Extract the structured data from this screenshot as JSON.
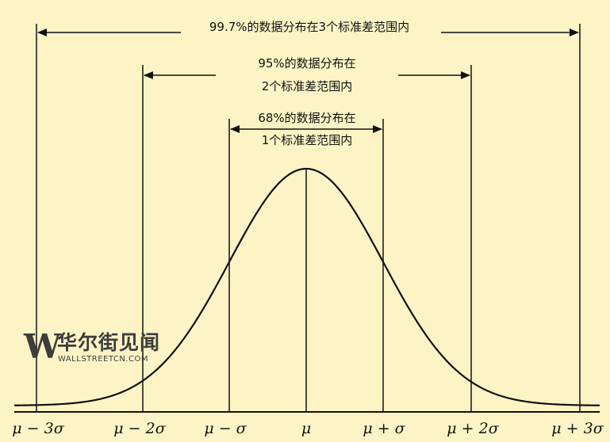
{
  "annotations": {
    "range_3sigma": "99.7%的数据分布在3个标准差范围内",
    "range_2sigma_line1": "95%的数据分布在",
    "range_2sigma_line2": "2个标准差范围内",
    "range_1sigma_line1": "68%的数据分布在",
    "range_1sigma_line2": "1个标准差范围内"
  },
  "axis": {
    "ticks": [
      {
        "label": "μ − 3σ",
        "sigma": -3
      },
      {
        "label": "μ − 2σ",
        "sigma": -2
      },
      {
        "label": "μ − σ",
        "sigma": -1
      },
      {
        "label": "μ",
        "sigma": 0
      },
      {
        "label": "μ + σ",
        "sigma": 1
      },
      {
        "label": "μ + 2σ",
        "sigma": 2
      },
      {
        "label": "μ + 3σ",
        "sigma": 3
      }
    ]
  },
  "watermark": {
    "logo_letter": "W",
    "name_cn": "华尔街见闻",
    "name_en": "WALLSTREETCN.COM"
  },
  "colors": {
    "background": "#fdf4c5",
    "ink": "#111111",
    "watermark": "#3d3d3d"
  }
}
